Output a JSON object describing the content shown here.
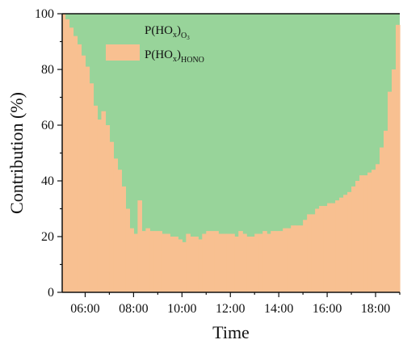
{
  "chart_data": {
    "type": "area",
    "stacked": true,
    "percent_stacked": true,
    "xlabel": "Time",
    "ylabel": "Contribution (%)",
    "ylim": [
      0,
      100
    ],
    "xlim": [
      "05:03",
      "19:00"
    ],
    "yticks": [
      0,
      20,
      40,
      60,
      80,
      100
    ],
    "xticks": [
      "06:00",
      "08:00",
      "10:00",
      "12:00",
      "14:00",
      "16:00",
      "18:00"
    ],
    "legend_position": "top-left",
    "colors": {
      "hono": "#f8c091",
      "o3": "#98d49a"
    },
    "legend": {
      "o3": {
        "base": "P(HO",
        "sub1": "x",
        "mid": ")",
        "sub2": "O",
        "sub3": "3"
      },
      "hono": {
        "base": "P(HO",
        "sub1": "x",
        "mid": ")",
        "sub2": "HONO"
      }
    },
    "x": [
      "05:00",
      "05:10",
      "05:20",
      "05:30",
      "05:40",
      "05:50",
      "06:00",
      "06:10",
      "06:20",
      "06:30",
      "06:40",
      "06:50",
      "07:00",
      "07:10",
      "07:20",
      "07:30",
      "07:40",
      "07:50",
      "08:00",
      "08:10",
      "08:20",
      "08:30",
      "08:40",
      "08:50",
      "09:00",
      "09:10",
      "09:20",
      "09:30",
      "09:40",
      "09:50",
      "10:00",
      "10:10",
      "10:20",
      "10:30",
      "10:40",
      "10:50",
      "11:00",
      "11:10",
      "11:20",
      "11:30",
      "11:40",
      "11:50",
      "12:00",
      "12:10",
      "12:20",
      "12:30",
      "12:40",
      "12:50",
      "13:00",
      "13:10",
      "13:20",
      "13:30",
      "13:40",
      "13:50",
      "14:00",
      "14:10",
      "14:20",
      "14:30",
      "14:40",
      "14:50",
      "15:00",
      "15:10",
      "15:20",
      "15:30",
      "15:40",
      "15:50",
      "16:00",
      "16:10",
      "16:20",
      "16:30",
      "16:40",
      "16:50",
      "17:00",
      "17:10",
      "17:20",
      "17:30",
      "17:40",
      "17:50",
      "18:00",
      "18:10",
      "18:20",
      "18:30",
      "18:40",
      "18:50"
    ],
    "series": [
      {
        "name": "P(HOx)HONO",
        "values": [
          100,
          98,
          95,
          92,
          89,
          85,
          81,
          75,
          67,
          62,
          65,
          60,
          54,
          48,
          44,
          38,
          30,
          23,
          21,
          33,
          22,
          23,
          22,
          22,
          22,
          21,
          21,
          20,
          20,
          19,
          18,
          21,
          20,
          20,
          19,
          21,
          22,
          22,
          22,
          21,
          21,
          21,
          21,
          20,
          22,
          21,
          20,
          20,
          21,
          21,
          22,
          21,
          22,
          22,
          22,
          23,
          23,
          24,
          24,
          24,
          26,
          28,
          28,
          30,
          31,
          31,
          32,
          32,
          33,
          34,
          35,
          36,
          38,
          40,
          42,
          42,
          43,
          44,
          46,
          52,
          58,
          72,
          80,
          96
        ]
      },
      {
        "name": "P(HOx)O3",
        "values": [
          0,
          2,
          5,
          8,
          11,
          15,
          19,
          25,
          33,
          38,
          35,
          40,
          46,
          52,
          56,
          62,
          70,
          77,
          79,
          67,
          78,
          77,
          78,
          78,
          78,
          79,
          79,
          80,
          80,
          81,
          82,
          79,
          80,
          80,
          81,
          79,
          78,
          78,
          78,
          79,
          79,
          79,
          79,
          80,
          78,
          79,
          80,
          80,
          79,
          79,
          78,
          79,
          78,
          78,
          78,
          77,
          77,
          76,
          76,
          76,
          74,
          72,
          72,
          70,
          69,
          69,
          68,
          68,
          67,
          66,
          65,
          64,
          62,
          60,
          58,
          58,
          57,
          56,
          54,
          48,
          42,
          28,
          20,
          4
        ]
      }
    ]
  }
}
